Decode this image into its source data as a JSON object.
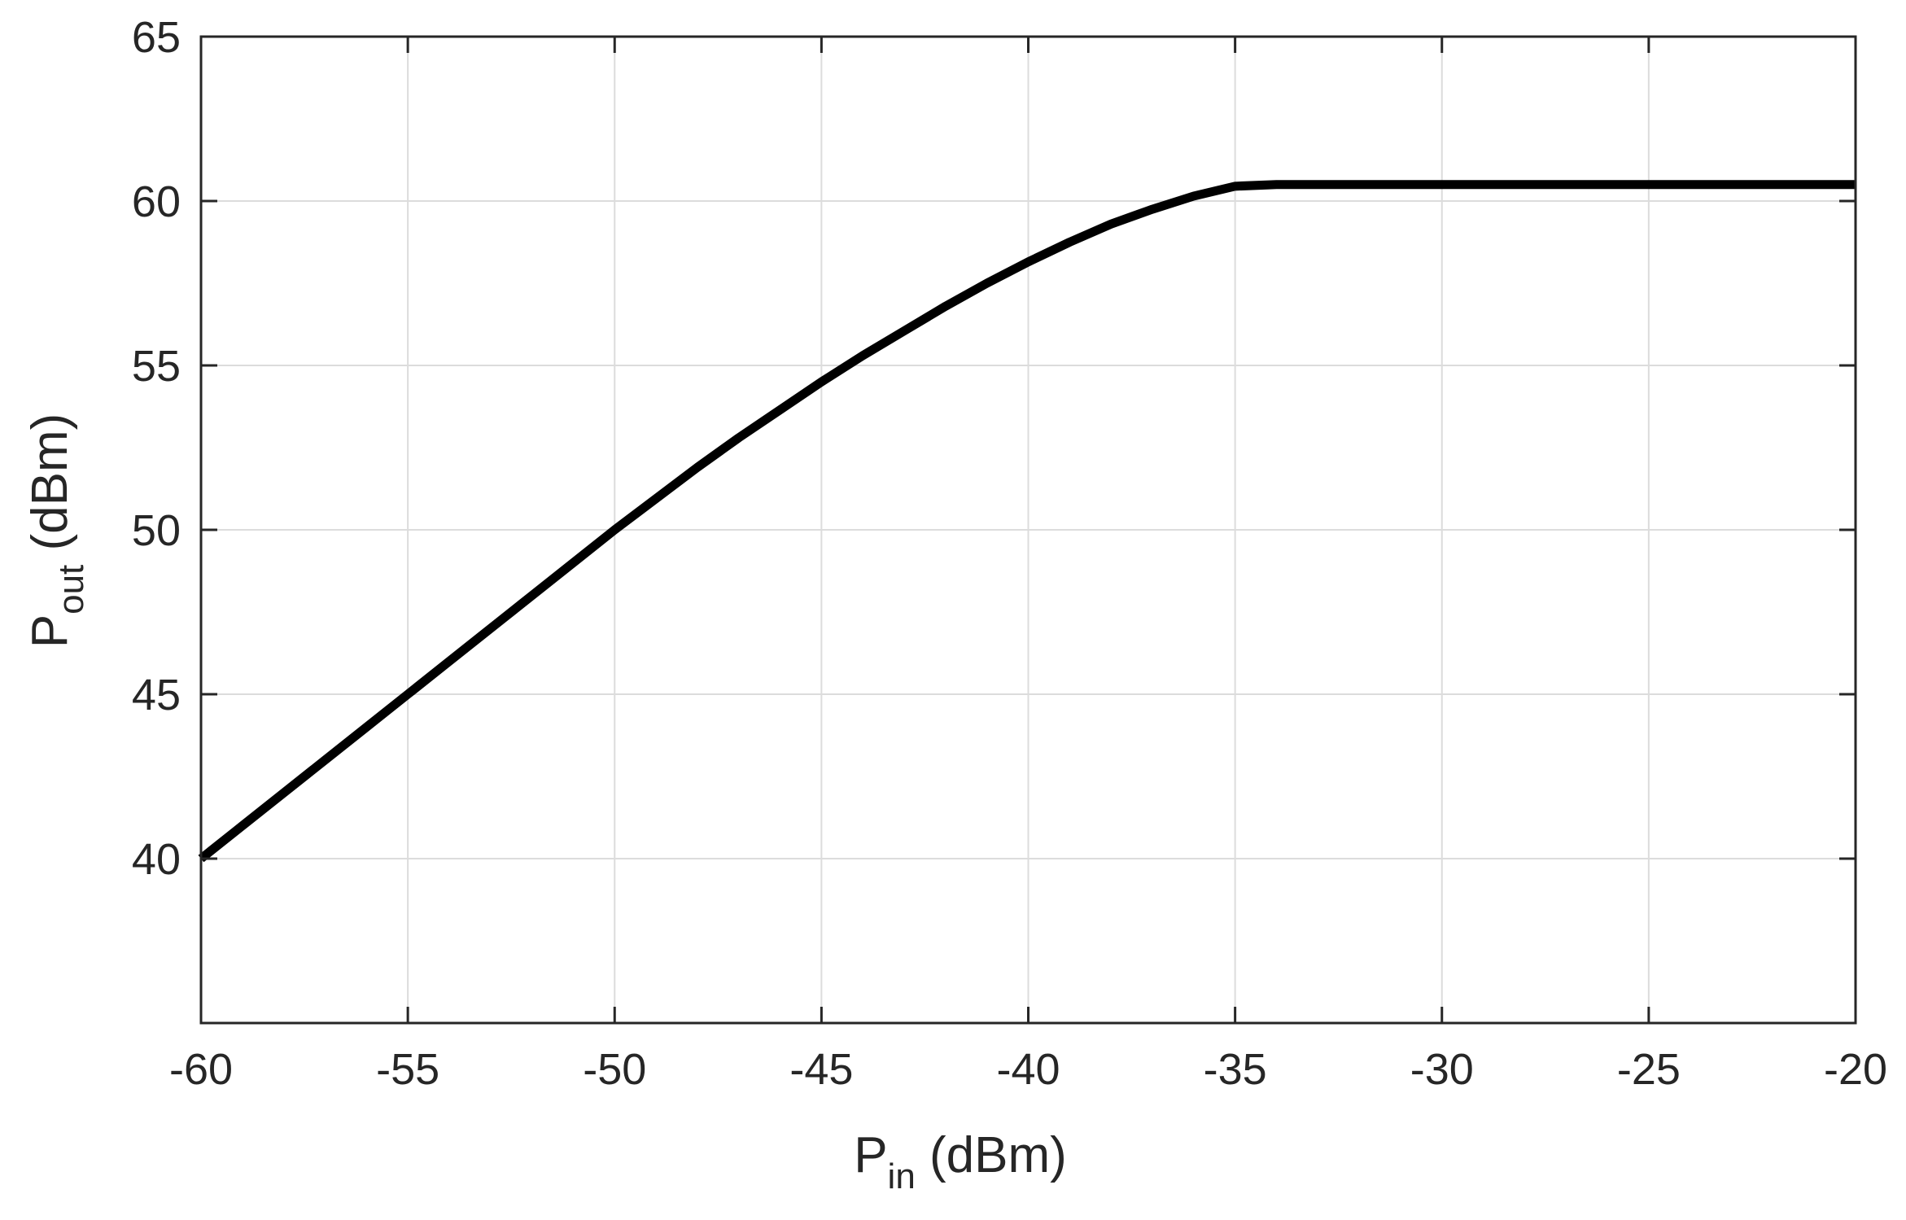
{
  "chart_data": {
    "type": "line",
    "xlabel": {
      "main": "P",
      "sub": "in",
      "unit": " (dBm)"
    },
    "ylabel": {
      "main": "P",
      "sub": "out",
      "unit": " (dBm)"
    },
    "xlim": [
      -60,
      -20
    ],
    "ylim": [
      35,
      65
    ],
    "xticks": [
      -60,
      -55,
      -50,
      -45,
      -40,
      -35,
      -30,
      -25,
      -20
    ],
    "yticks": [
      40,
      45,
      50,
      55,
      60,
      65
    ],
    "xtick_labels": [
      "-60",
      "-55",
      "-50",
      "-45",
      "-40",
      "-35",
      "-30",
      "-25",
      "-20"
    ],
    "ytick_labels": [
      "40",
      "45",
      "50",
      "55",
      "60",
      "65"
    ],
    "grid": true,
    "colors": {
      "line": "#000000",
      "grid": "#dcdcdc",
      "axes": "#262626"
    },
    "series": [
      {
        "x": [
          -60,
          -59,
          -58,
          -57,
          -56,
          -55,
          -54,
          -53,
          -52,
          -51,
          -50,
          -49,
          -48,
          -47,
          -46,
          -45,
          -44,
          -43,
          -42,
          -41,
          -40,
          -39,
          -38,
          -37,
          -36,
          -35,
          -34,
          -33,
          -32,
          -31,
          -30,
          -29,
          -28,
          -27,
          -26,
          -25,
          -24,
          -23,
          -22,
          -21,
          -20
        ],
        "y": [
          40.0,
          41.0,
          42.0,
          43.0,
          44.0,
          45.0,
          46.0,
          47.0,
          48.0,
          49.0,
          50.0,
          50.95,
          51.9,
          52.8,
          53.65,
          54.5,
          55.3,
          56.05,
          56.8,
          57.5,
          58.15,
          58.75,
          59.3,
          59.75,
          60.15,
          60.45,
          60.5,
          60.5,
          60.5,
          60.5,
          60.5,
          60.5,
          60.5,
          60.5,
          60.5,
          60.5,
          60.5,
          60.5,
          60.5,
          60.5,
          60.5
        ]
      }
    ]
  }
}
